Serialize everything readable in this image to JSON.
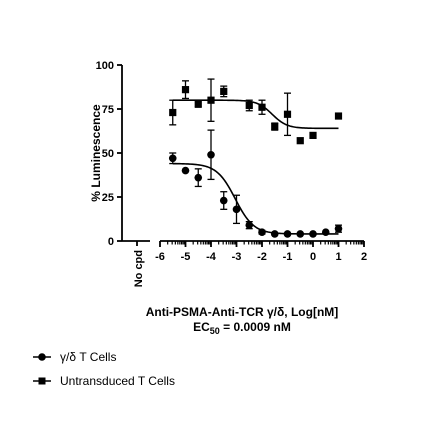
{
  "chart_data": {
    "type": "scatter",
    "ylabel": "% Luminescence",
    "xlabel": "Anti-PSMA-Anti-TCR γ/δ, Log[nM]",
    "annotation": {
      "prefix": "EC",
      "subscript": "50",
      "suffix": " = 0.0009 nM"
    },
    "no_compound_label": "No cpd",
    "xlim": [
      -6,
      2
    ],
    "ylim": [
      0,
      100
    ],
    "xticks": [
      "-6",
      "-5",
      "-4",
      "-3",
      "-2",
      "-1",
      "0",
      "1",
      "2"
    ],
    "yticks": [
      "0",
      "25",
      "50",
      "75",
      "100"
    ],
    "grid": false,
    "legend_position": "bottom-left",
    "series": [
      {
        "name": "γ/δ T Cells",
        "marker": "circle",
        "color": "#000000",
        "points": [
          {
            "x": -5.5,
            "y": 47,
            "err": 3
          },
          {
            "x": -5.0,
            "y": 40,
            "err": 0
          },
          {
            "x": -4.5,
            "y": 36,
            "err": 5
          },
          {
            "x": -4.0,
            "y": 49,
            "err": 14
          },
          {
            "x": -3.5,
            "y": 23,
            "err": 5
          },
          {
            "x": -3.0,
            "y": 18,
            "err": 8
          },
          {
            "x": -2.5,
            "y": 9,
            "err": 2
          },
          {
            "x": -2.0,
            "y": 5,
            "err": 1
          },
          {
            "x": -1.5,
            "y": 4,
            "err": 0
          },
          {
            "x": -1.0,
            "y": 4,
            "err": 0
          },
          {
            "x": -0.5,
            "y": 4,
            "err": 0
          },
          {
            "x": 0.0,
            "y": 4,
            "err": 0
          },
          {
            "x": 0.5,
            "y": 5,
            "err": 0
          },
          {
            "x": 1.0,
            "y": 7,
            "err": 2
          }
        ],
        "fit": {
          "top": 44,
          "bottom": 4,
          "logEC50": -3.05,
          "hill": -1.2
        }
      },
      {
        "name": "Untransduced T Cells",
        "marker": "square",
        "color": "#000000",
        "points": [
          {
            "x": -5.5,
            "y": 73,
            "err": 7
          },
          {
            "x": -5.0,
            "y": 86,
            "err": 5
          },
          {
            "x": -4.5,
            "y": 78,
            "err": 2
          },
          {
            "x": -4.0,
            "y": 80,
            "err": 12
          },
          {
            "x": -3.5,
            "y": 85,
            "err": 3
          },
          {
            "x": -2.5,
            "y": 77,
            "err": 3
          },
          {
            "x": -2.0,
            "y": 76,
            "err": 4
          },
          {
            "x": -1.5,
            "y": 65,
            "err": 2
          },
          {
            "x": -1.0,
            "y": 72,
            "err": 12
          },
          {
            "x": -0.5,
            "y": 57,
            "err": 0
          },
          {
            "x": 0.0,
            "y": 60,
            "err": 0
          },
          {
            "x": 1.0,
            "y": 71,
            "err": 0
          }
        ],
        "fit": {
          "top": 80,
          "bottom": 64,
          "logEC50": -1.6,
          "hill": -1.5
        }
      }
    ]
  }
}
